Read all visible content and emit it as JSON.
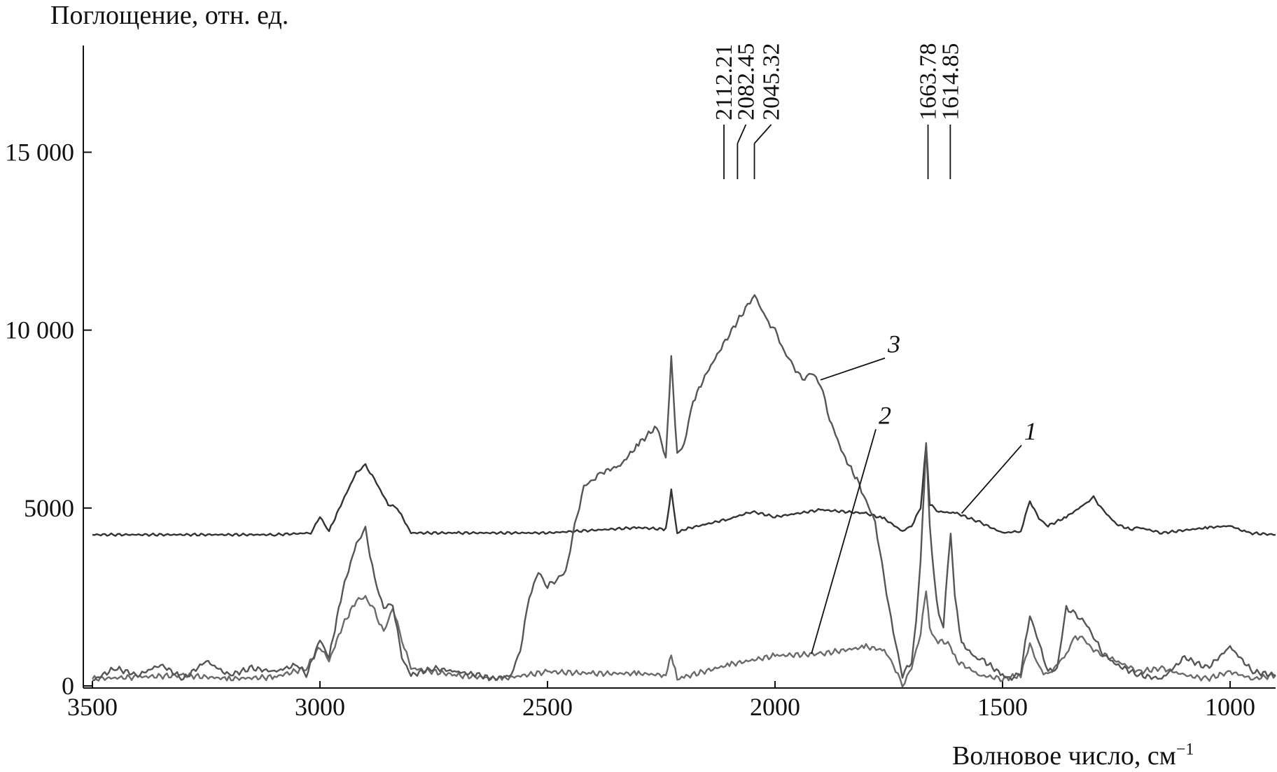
{
  "chart_data": {
    "type": "line",
    "ylabel": "Поглощение, отн. ед.",
    "xlabel": "Волновое число, см",
    "xlabel_superscript": "−1",
    "xlim": [
      3500,
      900
    ],
    "ylim": [
      0,
      18000
    ],
    "x_reversed": true,
    "x_ticks": [
      {
        "value": 3500,
        "label": "3500"
      },
      {
        "value": 3000,
        "label": "3000"
      },
      {
        "value": 2500,
        "label": "2500"
      },
      {
        "value": 2000,
        "label": "2000"
      },
      {
        "value": 1500,
        "label": "1500"
      },
      {
        "value": 1000,
        "label": "1000"
      }
    ],
    "y_ticks": [
      {
        "value": 0,
        "label": "0"
      },
      {
        "value": 5000,
        "label": "5000"
      },
      {
        "value": 10000,
        "label": "10 000"
      },
      {
        "value": 15000,
        "label": "15 000"
      }
    ],
    "peak_labels": [
      {
        "x": 2112.21,
        "label": "2112.21"
      },
      {
        "x": 2082.45,
        "label": "2082.45"
      },
      {
        "x": 2045.32,
        "label": "2045.32"
      },
      {
        "x": 1663.78,
        "label": "1663.78"
      },
      {
        "x": 1614.85,
        "label": "1614.85"
      }
    ],
    "series": [
      {
        "name": "1",
        "color": "#333333",
        "label_at": {
          "x": 1590,
          "y": 4850
        },
        "label_pos": {
          "x": 1440,
          "y": 7000
        },
        "x": [
          3500,
          3100,
          3020,
          3000,
          2980,
          2950,
          2920,
          2900,
          2880,
          2850,
          2830,
          2800,
          2700,
          2500,
          2300,
          2240,
          2228,
          2215,
          2200,
          2100,
          2050,
          2000,
          1900,
          1800,
          1760,
          1720,
          1700,
          1680,
          1668,
          1660,
          1640,
          1600,
          1550,
          1500,
          1460,
          1440,
          1420,
          1400,
          1360,
          1320,
          1300,
          1280,
          1250,
          1220,
          1200,
          1150,
          1050,
          1000,
          960,
          900
        ],
        "values": [
          4250,
          4250,
          4300,
          4750,
          4350,
          5200,
          6000,
          6200,
          5800,
          5100,
          5000,
          4300,
          4300,
          4300,
          4450,
          4400,
          5500,
          4300,
          4400,
          4700,
          4900,
          4750,
          4950,
          4850,
          4700,
          4350,
          4500,
          5000,
          6800,
          5100,
          4900,
          4850,
          4600,
          4300,
          4350,
          5200,
          4700,
          4500,
          4750,
          5100,
          5300,
          4950,
          4550,
          4400,
          4450,
          4300,
          4450,
          4500,
          4300,
          4250
        ]
      },
      {
        "name": "2",
        "color": "#6a6a6a",
        "label_at": {
          "x": 1920,
          "y": 900
        },
        "label_pos": {
          "x": 1760,
          "y": 7450
        },
        "x": [
          3500,
          3400,
          3300,
          3200,
          3100,
          3030,
          3000,
          2980,
          2950,
          2920,
          2900,
          2880,
          2860,
          2840,
          2820,
          2800,
          2700,
          2600,
          2500,
          2400,
          2300,
          2240,
          2228,
          2215,
          2200,
          2100,
          2000,
          1900,
          1800,
          1760,
          1740,
          1720,
          1700,
          1680,
          1668,
          1660,
          1650,
          1620,
          1614,
          1600,
          1550,
          1500,
          1460,
          1440,
          1420,
          1400,
          1360,
          1340,
          1320,
          1300,
          1280,
          1250,
          1200,
          1150,
          1100,
          1050,
          1000,
          950,
          900
        ],
        "values": [
          200,
          250,
          300,
          200,
          250,
          500,
          1100,
          700,
          1700,
          2400,
          2500,
          2100,
          1500,
          2200,
          1300,
          500,
          300,
          200,
          400,
          350,
          350,
          300,
          900,
          200,
          250,
          600,
          850,
          900,
          1100,
          1000,
          600,
          0,
          500,
          1500,
          2700,
          1600,
          1300,
          1200,
          1100,
          700,
          300,
          200,
          300,
          1200,
          500,
          300,
          900,
          1400,
          1300,
          1000,
          900,
          700,
          400,
          500,
          300,
          200,
          400,
          200,
          300
        ]
      },
      {
        "name": "3",
        "color": "#555555",
        "label_at": {
          "x": 1900,
          "y": 8600
        },
        "label_pos": {
          "x": 1740,
          "y": 9450
        },
        "x": [
          3500,
          3450,
          3400,
          3350,
          3300,
          3250,
          3200,
          3150,
          3100,
          3050,
          3030,
          3000,
          2980,
          2950,
          2920,
          2900,
          2880,
          2860,
          2840,
          2820,
          2800,
          2750,
          2700,
          2650,
          2620,
          2580,
          2560,
          2540,
          2520,
          2500,
          2480,
          2460,
          2440,
          2420,
          2400,
          2380,
          2340,
          2300,
          2260,
          2240,
          2228,
          2215,
          2200,
          2180,
          2150,
          2100,
          2070,
          2045,
          2020,
          2000,
          1980,
          1960,
          1940,
          1920,
          1900,
          1880,
          1850,
          1820,
          1800,
          1780,
          1760,
          1740,
          1720,
          1700,
          1690,
          1680,
          1668,
          1660,
          1650,
          1640,
          1630,
          1620,
          1614,
          1605,
          1590,
          1560,
          1540,
          1500,
          1480,
          1460,
          1440,
          1420,
          1400,
          1380,
          1360,
          1340,
          1320,
          1300,
          1280,
          1250,
          1200,
          1150,
          1100,
          1050,
          1000,
          950,
          900
        ],
        "values": [
          150,
          500,
          300,
          600,
          200,
          700,
          300,
          500,
          400,
          600,
          300,
          1300,
          800,
          2700,
          4000,
          4400,
          3000,
          2200,
          2300,
          800,
          300,
          500,
          400,
          300,
          200,
          300,
          1000,
          2500,
          3200,
          2800,
          3000,
          3200,
          4500,
          5600,
          5800,
          6000,
          6200,
          6800,
          7300,
          6400,
          9200,
          6500,
          6800,
          8000,
          8800,
          9900,
          10500,
          11000,
          10300,
          10000,
          9400,
          9000,
          8600,
          8800,
          8500,
          7500,
          6500,
          5800,
          5200,
          4600,
          3000,
          1500,
          300,
          700,
          1800,
          3500,
          6800,
          4500,
          3000,
          2000,
          1700,
          3500,
          4300,
          2500,
          1200,
          800,
          700,
          300,
          200,
          400,
          2000,
          1200,
          400,
          500,
          2200,
          2000,
          1800,
          1400,
          900,
          600,
          300,
          200,
          800,
          500,
          1100,
          400,
          300
        ]
      }
    ]
  }
}
